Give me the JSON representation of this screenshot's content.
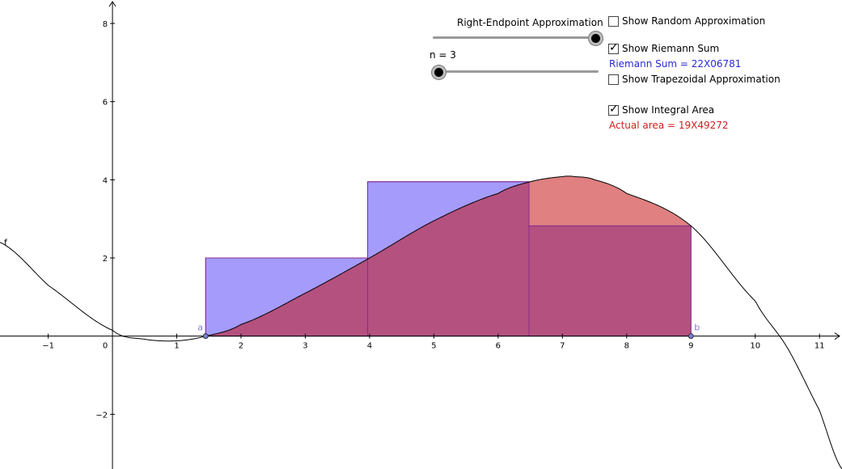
{
  "controls": {
    "endpoint_slider": {
      "label": "Right-Endpoint Approximation",
      "value": 1
    },
    "n_slider": {
      "label": "n = 3",
      "value": 0
    },
    "show_random": {
      "label": "Show Random Approximation",
      "checked": false
    },
    "show_riemann": {
      "label": "Show Riemann Sum",
      "checked": true
    },
    "riemann_sum_text": "Riemann Sum = 22X06781",
    "show_trapezoid": {
      "label": "Show Trapezoidal Approximation",
      "checked": false
    },
    "show_integral": {
      "label": "Show Integral Area",
      "checked": true
    },
    "actual_area_text": "Actual area = 19X49272"
  },
  "colors": {
    "riemann": "#a59bfb",
    "integral": "#e08080",
    "overlap": "#b4517f",
    "riemann_text": "#2b2bd6",
    "area_text": "#cc2222",
    "point": "#7d7dd8"
  },
  "chart_data": {
    "type": "area",
    "xlim": [
      -1.75,
      11.35
    ],
    "ylim": [
      -3.4,
      8.6
    ],
    "x_ticks": [
      -1,
      0,
      1,
      2,
      3,
      4,
      5,
      6,
      7,
      8,
      9,
      10,
      11
    ],
    "y_ticks": [
      -2,
      2,
      4,
      6,
      8
    ],
    "function_label": "f",
    "a_label": "a",
    "b_label": "b",
    "a": 1.45,
    "b": 9.0,
    "n": 3,
    "curve_points": [
      [
        -1.75,
        2.4
      ],
      [
        -1.0,
        1.3
      ],
      [
        0.0,
        0.15
      ],
      [
        0.5,
        -0.08
      ],
      [
        1.0,
        -0.12
      ],
      [
        1.45,
        0.0
      ],
      [
        2.0,
        0.3
      ],
      [
        3.0,
        1.1
      ],
      [
        4.0,
        2.0
      ],
      [
        5.0,
        2.95
      ],
      [
        6.0,
        3.65
      ],
      [
        6.5,
        3.95
      ],
      [
        7.0,
        4.08
      ],
      [
        7.2,
        4.08
      ],
      [
        7.5,
        4.0
      ],
      [
        8.0,
        3.65
      ],
      [
        9.0,
        2.82
      ],
      [
        10.0,
        0.9
      ],
      [
        10.5,
        -0.3
      ],
      [
        11.0,
        -1.9
      ],
      [
        11.35,
        -3.4
      ]
    ],
    "rectangles": [
      {
        "x0": 1.45,
        "x1": 3.97,
        "height": 2.0
      },
      {
        "x0": 3.97,
        "x1": 6.48,
        "height": 3.95
      },
      {
        "x0": 6.48,
        "x1": 9.0,
        "height": 2.82
      }
    ]
  }
}
